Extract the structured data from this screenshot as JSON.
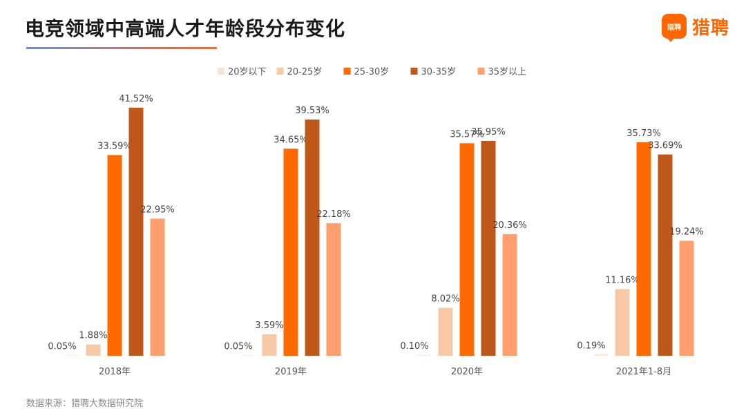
{
  "title": "电竞领域中高端人才年龄段分布变化",
  "logo": {
    "mark_text": "猎聘",
    "word": "猎聘"
  },
  "source": "数据来源：猎聘大数据研究院",
  "chart_data": {
    "type": "bar",
    "title": "",
    "xlabel": "",
    "ylabel": "",
    "ylim": [
      0,
      45
    ],
    "grid": false,
    "legend_position": "top-center",
    "categories": [
      "2018年",
      "2019年",
      "2020年",
      "2021年1-8月"
    ],
    "series": [
      {
        "name": "20岁以下",
        "color": "#f9e3d3",
        "values": [
          0.05,
          0.05,
          0.1,
          0.19
        ],
        "labels": [
          "0.05%",
          "0.05%",
          "0.10%",
          "0.19%"
        ]
      },
      {
        "name": "20-25岁",
        "color": "#f7c9a7",
        "values": [
          1.88,
          3.59,
          8.02,
          11.16
        ],
        "labels": [
          "1.88%",
          "3.59%",
          "8.02%",
          "11.16%"
        ]
      },
      {
        "name": "25-30岁",
        "color": "#ff6a00",
        "values": [
          33.59,
          34.65,
          35.57,
          35.73
        ],
        "labels": [
          "33.59%",
          "34.65%",
          "35.57%",
          "35.73%"
        ]
      },
      {
        "name": "30-35岁",
        "color": "#c0581b",
        "values": [
          41.52,
          39.53,
          35.95,
          33.69
        ],
        "labels": [
          "41.52%",
          "39.53%",
          "35.95%",
          "33.69%"
        ]
      },
      {
        "name": "35岁以上",
        "color": "#ff9f6e",
        "values": [
          22.95,
          22.18,
          20.36,
          19.24
        ],
        "labels": [
          "22.95%",
          "22.18%",
          "20.36%",
          "19.24%"
        ]
      }
    ]
  }
}
